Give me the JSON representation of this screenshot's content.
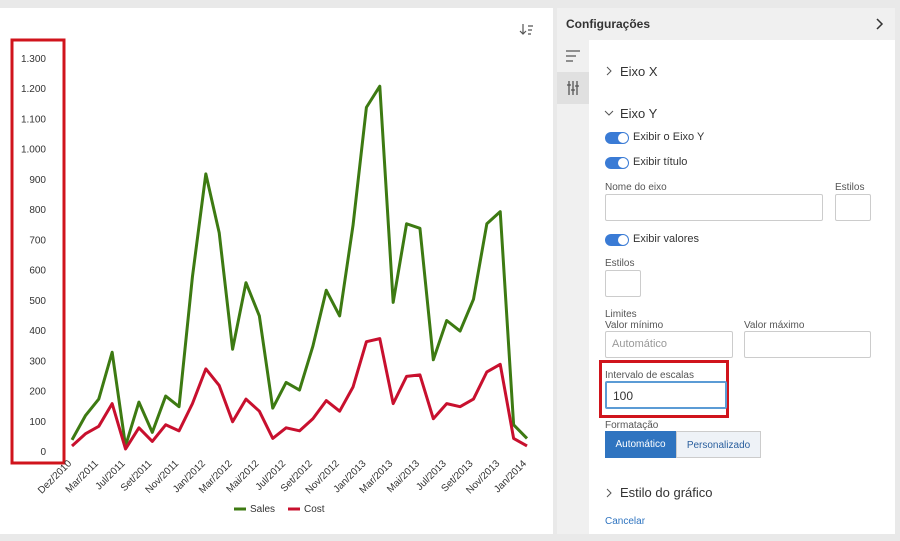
{
  "chart_data": {
    "type": "line",
    "categories": [
      "Dez/2010",
      null,
      "Mar/2011",
      null,
      "Jul/2011",
      null,
      "Set/2011",
      null,
      "Nov/2011",
      null,
      "Jan/2012",
      null,
      "Mar/2012",
      null,
      "Mai/2012",
      null,
      "Jul/2012",
      null,
      "Set/2012",
      null,
      "Nov/2012",
      null,
      "Jan/2013",
      null,
      "Mar/2013",
      null,
      "Mai/2013",
      null,
      "Jul/2013",
      null,
      "Set/2013",
      null,
      "Nov/2013",
      null,
      "Jan/2014"
    ],
    "series": [
      {
        "name": "Sales",
        "color": "#3d7a12",
        "values": [
          40,
          120,
          175,
          330,
          20,
          165,
          65,
          185,
          150,
          580,
          920,
          725,
          340,
          560,
          450,
          145,
          230,
          205,
          350,
          535,
          450,
          750,
          1140,
          1210,
          495,
          755,
          740,
          305,
          435,
          400,
          505,
          755,
          795,
          90,
          45
        ]
      },
      {
        "name": "Cost",
        "color": "#c8102e",
        "values": [
          20,
          60,
          85,
          160,
          10,
          80,
          35,
          90,
          70,
          160,
          275,
          220,
          100,
          175,
          135,
          45,
          80,
          70,
          110,
          170,
          135,
          215,
          365,
          375,
          160,
          250,
          255,
          110,
          160,
          150,
          175,
          265,
          290,
          45,
          20
        ]
      }
    ],
    "ylim": [
      0,
      1300
    ],
    "yticks": [
      0,
      100,
      200,
      300,
      400,
      500,
      600,
      700,
      800,
      900,
      {
        "value": 1000,
        "label": "1.000"
      },
      {
        "value": 1100,
        "label": "1.100"
      },
      {
        "value": 1200,
        "label": "1.200"
      },
      {
        "value": 1300,
        "label": "1.300"
      }
    ],
    "legend": "bottom"
  },
  "panel": {
    "title": "Configurações",
    "x_axis": "Eixo X",
    "y_axis": "Eixo Y",
    "show_axis": "Exibir o Eixo Y",
    "show_title": "Exibir título",
    "axis_name": "Nome do eixo",
    "styles": "Estilos",
    "show_values": "Exibir valores",
    "styles2": "Estilos",
    "limits": "Limites",
    "min_label": "Valor mínimo",
    "min_placeholder": "Automático",
    "max_label": "Valor máximo",
    "interval_label": "Intervalo de escalas",
    "interval_value": "100",
    "format_label": "Formatação",
    "format_auto": "Automático",
    "format_custom": "Personalizado",
    "chart_style": "Estilo do gráfico",
    "cancel": "Cancelar"
  }
}
